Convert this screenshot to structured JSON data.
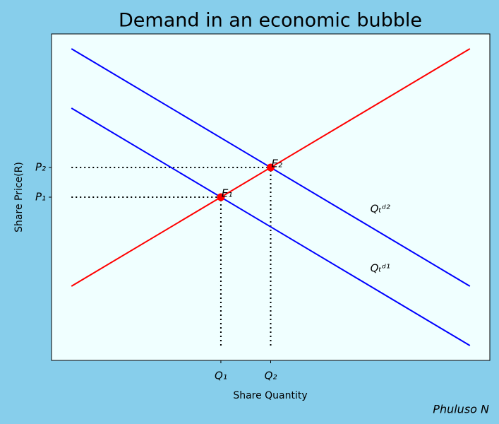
{
  "chart_data": {
    "type": "line",
    "title": "Demand in an economic bubble",
    "xlabel": "Share Quantity",
    "ylabel": "Share Price(R)",
    "credit": "Phuluso N",
    "xlim": [
      -0.5,
      10.5
    ],
    "ylim": [
      -0.5,
      10.5
    ],
    "xticks": [
      {
        "value": 3.75,
        "label": "Q₁"
      },
      {
        "value": 5,
        "label": "Q₂"
      }
    ],
    "yticks": [
      {
        "value": 5,
        "label": "P₁"
      },
      {
        "value": 6,
        "label": "P₂"
      }
    ],
    "series": [
      {
        "color": "#ff0000",
        "x": [
          0,
          10
        ],
        "values": [
          2,
          10
        ]
      },
      {
        "name": "Qₜᵈ¹",
        "color": "#0000ff",
        "label_color": "#0000ff",
        "x": [
          0,
          10
        ],
        "values": [
          8,
          0
        ]
      },
      {
        "name": "Qₜᵈ²",
        "color": "#0000ff",
        "label_color": "#1e90ff",
        "x": [
          0,
          10
        ],
        "values": [
          10,
          2
        ]
      }
    ],
    "points": {
      "color": "#ff0000",
      "labels": [
        "E₁",
        "E₂"
      ],
      "x": [
        3.75,
        5
      ],
      "values": [
        5,
        6
      ]
    }
  }
}
